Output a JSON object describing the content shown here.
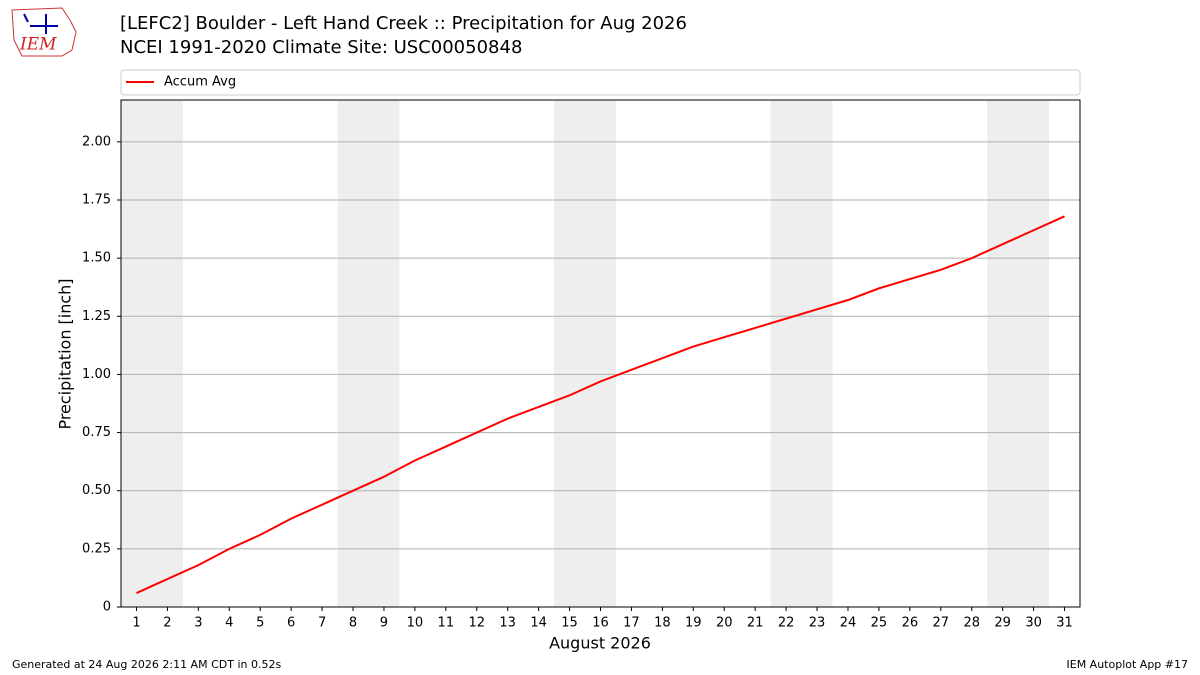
{
  "logo_text": "IEM",
  "footer_left": "Generated at 24 Aug 2026 2:11 AM CDT in 0.52s",
  "footer_right": "IEM Autoplot App #17",
  "chart_data": {
    "type": "line",
    "title": "[LEFC2] Boulder - Left Hand Creek :: Precipitation for Aug 2026",
    "subtitle": "NCEI 1991-2020 Climate Site: USC00050848",
    "x_label": "August 2026",
    "y_label": "Precipitation [inch]",
    "x": [
      1,
      2,
      3,
      4,
      5,
      6,
      7,
      8,
      9,
      10,
      11,
      12,
      13,
      14,
      15,
      16,
      17,
      18,
      19,
      20,
      21,
      22,
      23,
      24,
      25,
      26,
      27,
      28,
      29,
      30,
      31
    ],
    "series": [
      {
        "name": "Accum Avg",
        "color": "#ff0000",
        "values": [
          0.06,
          0.12,
          0.18,
          0.25,
          0.31,
          0.38,
          0.44,
          0.5,
          0.56,
          0.63,
          0.69,
          0.75,
          0.81,
          0.86,
          0.91,
          0.97,
          1.02,
          1.07,
          1.12,
          1.16,
          1.2,
          1.24,
          1.28,
          1.32,
          1.37,
          1.41,
          1.45,
          1.5,
          1.56,
          1.62,
          1.68
        ]
      }
    ],
    "weekend_spans": [
      [
        0.5,
        2.5
      ],
      [
        7.5,
        9.5
      ],
      [
        14.5,
        16.5
      ],
      [
        21.5,
        23.5
      ],
      [
        28.5,
        30.5
      ]
    ],
    "span_color": "#eeeeee",
    "xlim": [
      0.5,
      31.5
    ],
    "xticks": [
      1,
      2,
      3,
      4,
      5,
      6,
      7,
      8,
      9,
      10,
      11,
      12,
      13,
      14,
      15,
      16,
      17,
      18,
      19,
      20,
      21,
      22,
      23,
      24,
      25,
      26,
      27,
      28,
      29,
      30,
      31
    ],
    "ylim": [
      0,
      2.18
    ],
    "yticks": [
      0,
      {
        "value": 0.25,
        "label": "0.25"
      },
      {
        "value": 0.5,
        "label": "0.50"
      },
      {
        "value": 0.75,
        "label": "0.75"
      },
      {
        "value": 1,
        "label": "1.00"
      },
      {
        "value": 1.25,
        "label": "1.25"
      },
      {
        "value": 1.5,
        "label": "1.50"
      },
      {
        "value": 1.75,
        "label": "1.75"
      },
      {
        "value": 2,
        "label": "2.00"
      }
    ],
    "grid": true,
    "legend": "top"
  }
}
